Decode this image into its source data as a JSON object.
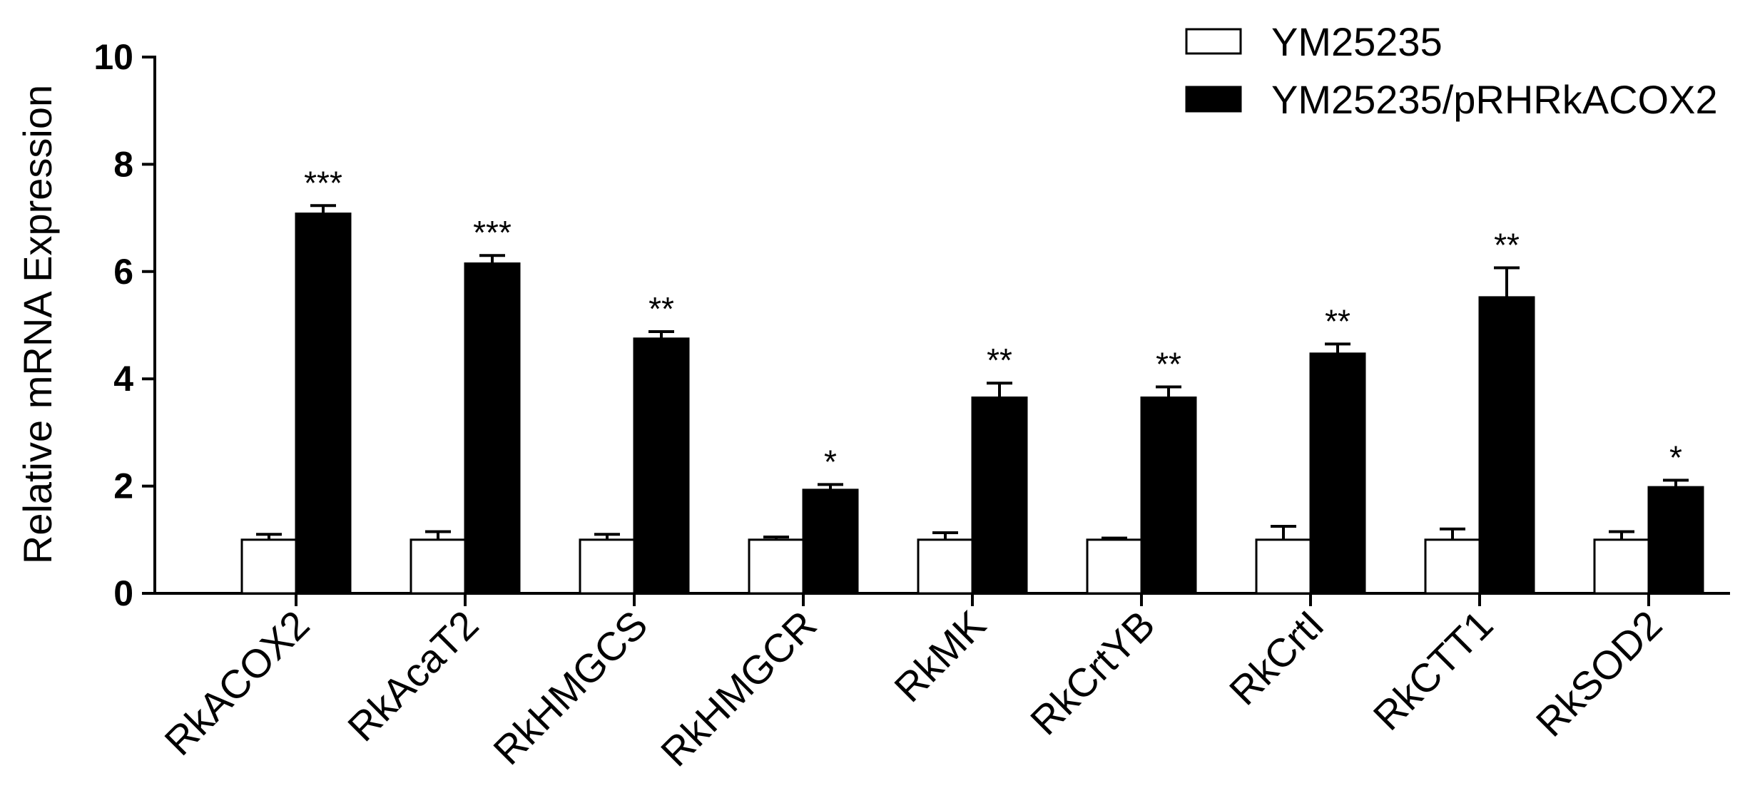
{
  "chart_data": {
    "type": "bar",
    "title": "",
    "xlabel": "",
    "ylabel": "Relative mRNA Expression",
    "ylim": [
      0,
      10
    ],
    "yticks": [
      "0",
      "2",
      "4",
      "6",
      "8",
      "10"
    ],
    "grid": false,
    "legend_position": "top-right",
    "categories": [
      "RkACOX2",
      "RkAcaT2",
      "RkHMGCS",
      "RkHMGCR",
      "RkMK",
      "RkCrtYB",
      "RkCrtI",
      "RkCTT1",
      "RkSOD2"
    ],
    "series": [
      {
        "name": "YM25235",
        "fill": "#ffffff",
        "values": [
          1.0,
          1.0,
          1.0,
          1.0,
          1.0,
          1.0,
          1.0,
          1.0,
          1.0
        ],
        "errors": [
          0.1,
          0.15,
          0.1,
          0.05,
          0.13,
          0.03,
          0.25,
          0.2,
          0.15
        ]
      },
      {
        "name": "YM25235/pRHRkACOX2",
        "fill": "#000000",
        "values": [
          7.08,
          6.15,
          4.75,
          1.93,
          3.65,
          3.65,
          4.47,
          5.52,
          1.98
        ],
        "errors": [
          0.15,
          0.15,
          0.13,
          0.1,
          0.27,
          0.2,
          0.18,
          0.55,
          0.13
        ]
      }
    ],
    "significance": [
      "***",
      "***",
      "**",
      "*",
      "**",
      "**",
      "**",
      "**",
      "*"
    ]
  }
}
